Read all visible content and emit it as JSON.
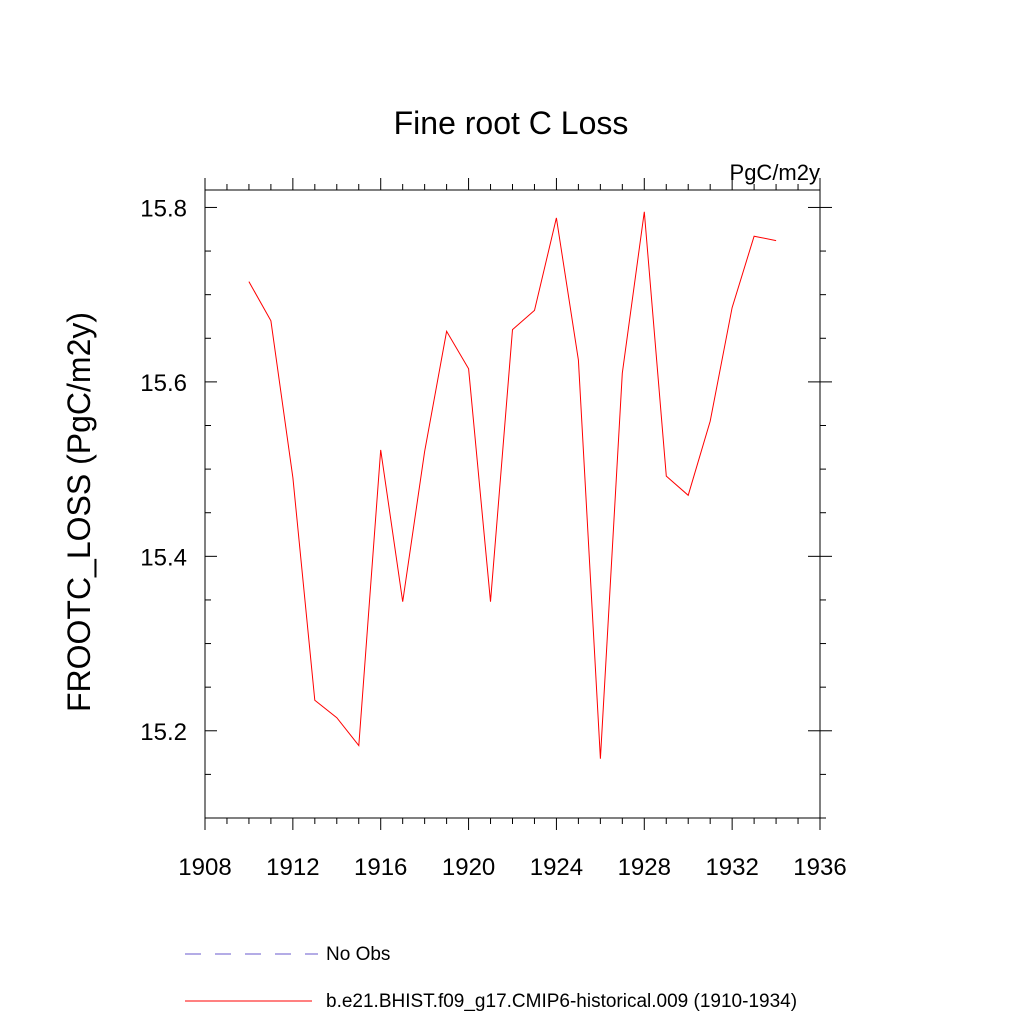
{
  "chart_data": {
    "type": "line",
    "title": "Fine root C Loss",
    "units_label": "PgC/m2y",
    "ylabel": "FROOTC_LOSS  (PgC/m2y)",
    "xlabel": "",
    "xlim": [
      1908,
      1936
    ],
    "ylim": [
      15.1,
      15.82
    ],
    "x_ticks": [
      1908,
      1912,
      1916,
      1920,
      1924,
      1928,
      1932,
      1936
    ],
    "x_tick_labels": [
      "1908",
      "1912",
      "1916",
      "1920",
      "1924",
      "1928",
      "1932",
      "1936"
    ],
    "y_ticks": [
      15.2,
      15.4,
      15.6,
      15.8
    ],
    "y_tick_labels": [
      "15.2",
      "15.4",
      "15.6",
      "15.8"
    ],
    "grid": false,
    "legend_position": "bottom",
    "series": [
      {
        "name": "b.e21.BHIST.f09_g17.CMIP6-historical.009 (1910-1934)",
        "color": "#ff0000",
        "dash": "solid",
        "x": [
          1910,
          1911,
          1912,
          1913,
          1914,
          1915,
          1916,
          1917,
          1918,
          1919,
          1920,
          1921,
          1922,
          1923,
          1924,
          1925,
          1926,
          1927,
          1928,
          1929,
          1930,
          1931,
          1932,
          1933,
          1934
        ],
        "y": [
          15.715,
          15.67,
          15.49,
          15.235,
          15.215,
          15.183,
          15.522,
          15.348,
          15.52,
          15.658,
          15.615,
          15.348,
          15.66,
          15.682,
          15.788,
          15.625,
          15.168,
          15.61,
          15.795,
          15.492,
          15.47,
          15.555,
          15.685,
          15.767,
          15.762
        ]
      }
    ],
    "legend": [
      {
        "label": "No Obs",
        "color": "#6a5acd",
        "dash": "dashed"
      },
      {
        "label": "b.e21.BHIST.f09_g17.CMIP6-historical.009 (1910-1934)",
        "color": "#ff0000",
        "dash": "solid"
      }
    ]
  }
}
